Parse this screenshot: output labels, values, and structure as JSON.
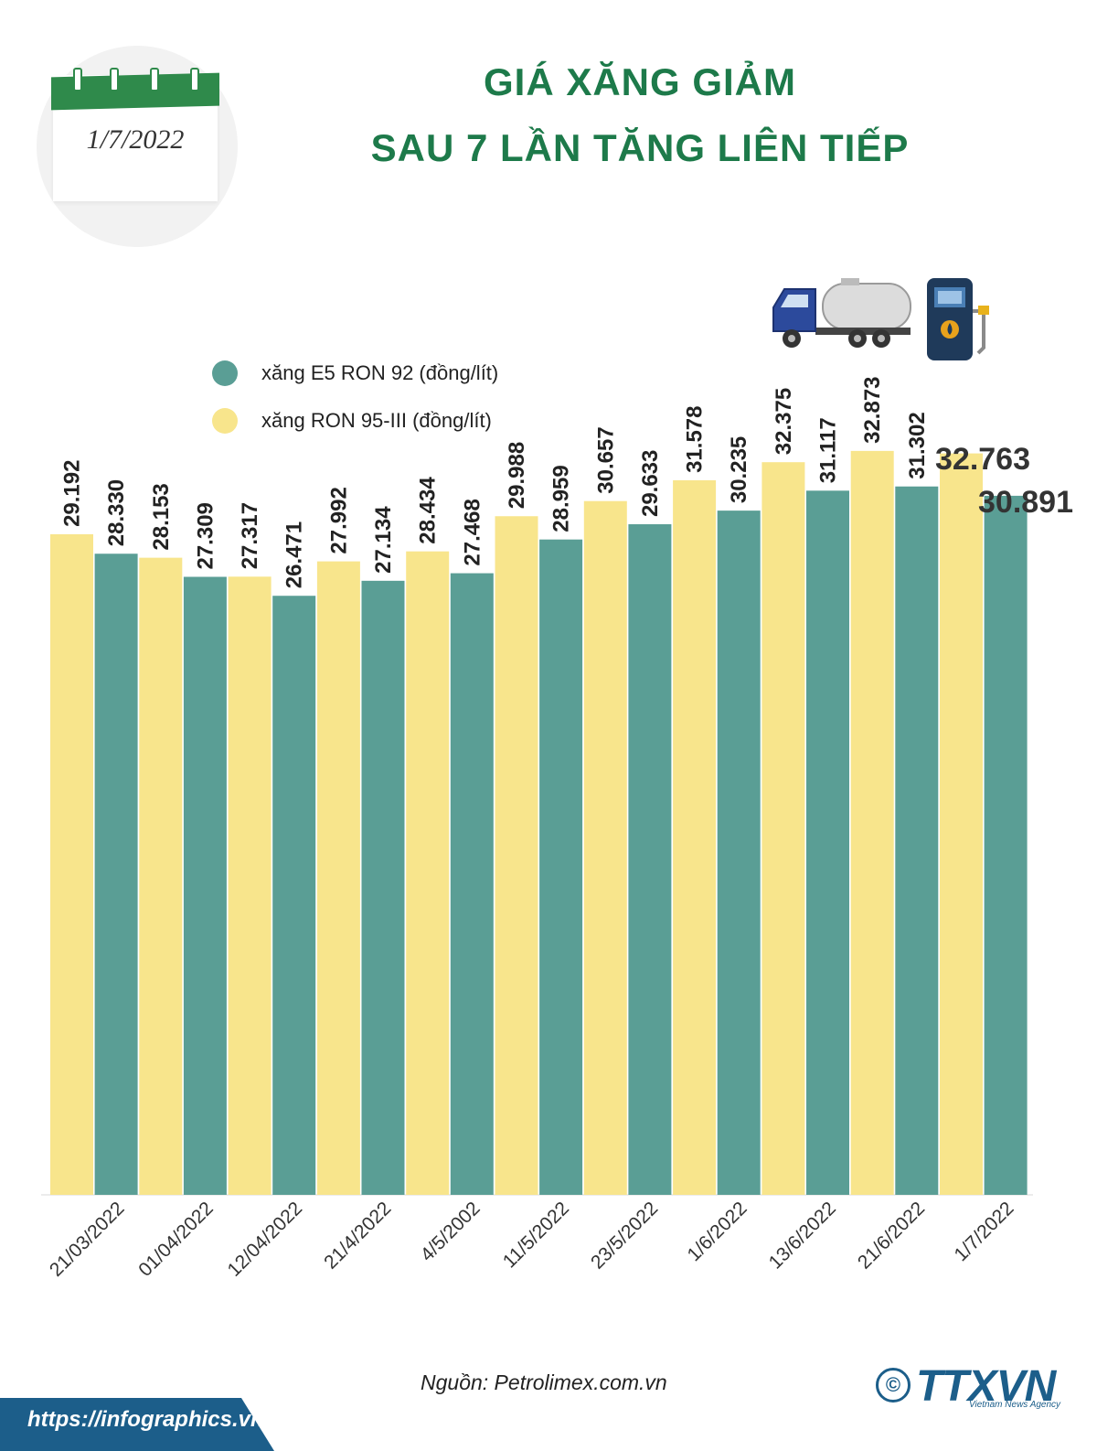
{
  "header": {
    "date_badge": "1/7/2022",
    "title_line1": "GIÁ XĂNG GIẢM",
    "title_line2": "SAU 7 LẦN TĂNG LIÊN TIẾP"
  },
  "icons": [
    "calendar-icon",
    "fuel-truck-icon",
    "fuel-pump-icon"
  ],
  "colors": {
    "e5": "#5a9e95",
    "ron95": "#f8e58c",
    "title": "#1d7a4a",
    "brand": "#1c5e8a"
  },
  "chart_data": {
    "type": "bar",
    "title": "",
    "xlabel": "",
    "ylabel": "",
    "ylim": [
      0,
      34000
    ],
    "grid": false,
    "legend_position": "top-left",
    "categories": [
      "21/03/2022",
      "01/04/2022",
      "12/04/2022",
      "21/4/2022",
      "4/5/2002",
      "11/5/2022",
      "23/5/2022",
      "1/6/2022",
      "13/6/2022",
      "21/6/2022",
      "1/7/2022"
    ],
    "series": [
      {
        "name": "xăng RON 95-III (đồng/lít)",
        "color": "#f8e58c",
        "values": [
          29192,
          28153,
          27317,
          27992,
          28434,
          29988,
          30657,
          31578,
          32375,
          32873,
          32763
        ],
        "labels": [
          "29.192",
          "28.153",
          "27.317",
          "27.992",
          "28.434",
          "29.988",
          "30.657",
          "31.578",
          "32.375",
          "32.873",
          "32.763"
        ]
      },
      {
        "name": "xăng E5 RON 92 (đồng/lít)",
        "color": "#5a9e95",
        "values": [
          28330,
          27309,
          26471,
          27134,
          27468,
          28959,
          29633,
          30235,
          31117,
          31302,
          30891
        ],
        "labels": [
          "28.330",
          "27.309",
          "26.471",
          "27.134",
          "27.468",
          "28.959",
          "29.633",
          "30.235",
          "31.117",
          "31.302",
          "30.891"
        ]
      }
    ]
  },
  "footer": {
    "source": "Nguồn: Petrolimex.com.vn",
    "url": "https://infographics.vn",
    "copyright": "©",
    "brand": "TTXVN",
    "brand_sub": "Vietnam News Agency"
  }
}
